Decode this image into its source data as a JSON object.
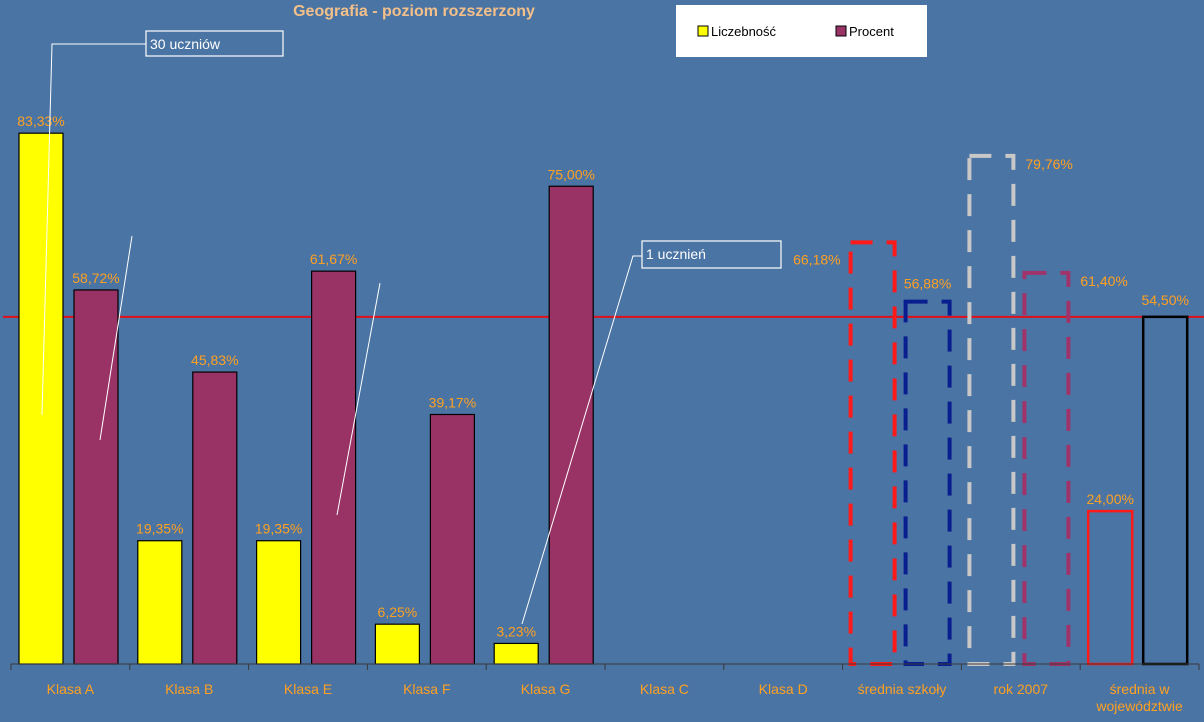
{
  "chart_data": {
    "type": "bar",
    "title": "Geografia - poziom rozszerzony",
    "categories": [
      "Klasa A",
      "Klasa B",
      "Klasa E",
      "Klasa F",
      "Klasa G",
      "Klasa C",
      "Klasa D",
      "średnia szkoły",
      "rok 2007",
      "średnia w województwie"
    ],
    "series": [
      {
        "name": "Liczebność",
        "color": "#ffff00",
        "values": [
          83.33,
          19.35,
          19.35,
          6.25,
          3.23,
          null,
          null,
          null,
          null,
          null
        ],
        "labels": [
          "83,33%",
          "19,35%",
          "19,35%",
          "6,25%",
          "3,23%",
          "",
          "",
          "",
          "",
          ""
        ]
      },
      {
        "name": "Procent",
        "color": "#993366",
        "values": [
          58.72,
          45.83,
          61.67,
          39.17,
          75.0,
          null,
          null,
          null,
          null,
          null
        ],
        "labels": [
          "58,72%",
          "45,83%",
          "61,67%",
          "39,17%",
          "75,00%",
          "",
          "",
          "",
          "",
          ""
        ]
      }
    ],
    "overlays": [
      {
        "category": "średnia szkoły",
        "slot": 0,
        "value": 66.18,
        "label": "66,18%",
        "style": "dashed",
        "color": "#ff1a1a"
      },
      {
        "category": "średnia szkoły",
        "slot": 1,
        "value": 56.88,
        "label": "56,88%",
        "style": "dashed",
        "color": "#0a1f8f"
      },
      {
        "category": "rok 2007",
        "slot": 0,
        "value": 79.76,
        "label": "79,76%",
        "style": "dashed",
        "color": "#c8c8c8"
      },
      {
        "category": "rok 2007",
        "slot": 1,
        "value": 61.4,
        "label": "61,40%",
        "style": "dashed",
        "color": "#a0336a"
      },
      {
        "category": "średnia w województwie",
        "slot": 0,
        "value": 24.0,
        "label": "24,00%",
        "style": "solid",
        "color": "#ff1a1a"
      },
      {
        "category": "średnia w województwie",
        "slot": 1,
        "value": 54.5,
        "label": "54,50%",
        "style": "solid",
        "color": "#000000"
      }
    ],
    "reference_line": {
      "value": 54.5,
      "color": "#e0101a"
    },
    "annotations": [
      "30 uczniów",
      "1 ucznień"
    ],
    "ylim": [
      0,
      100
    ],
    "legend_position": "top-right",
    "grid": false,
    "label_color": "#ffa020"
  }
}
